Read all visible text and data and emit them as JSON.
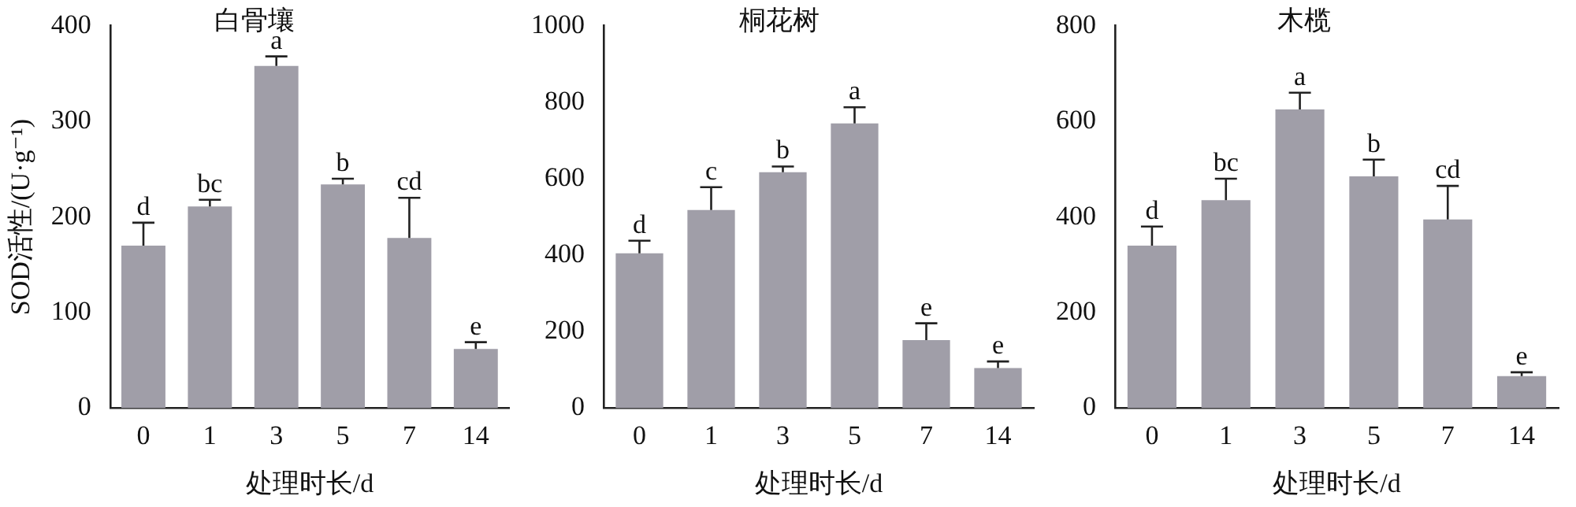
{
  "chart_data": [
    {
      "type": "bar",
      "title": "白骨壤",
      "xlabel": "处理时长/d",
      "ylabel": "SOD活性/(U·g⁻¹)",
      "categories": [
        "0",
        "1",
        "3",
        "5",
        "7",
        "14"
      ],
      "values": [
        170,
        211,
        358,
        234,
        178,
        62
      ],
      "errors": [
        24,
        7,
        10,
        6,
        42,
        7
      ],
      "value_labels": [
        "d",
        "bc",
        "a",
        "b",
        "cd",
        "e"
      ],
      "color": "#a09ea8",
      "ylim": [
        0,
        400
      ],
      "yticks": [
        0,
        100,
        200,
        300,
        400
      ],
      "grid": false,
      "legend": false
    },
    {
      "type": "bar",
      "title": "桐花树",
      "xlabel": "处理时长/d",
      "categories": [
        "0",
        "1",
        "3",
        "5",
        "7",
        "14"
      ],
      "values": [
        405,
        518,
        617,
        745,
        178,
        105
      ],
      "errors": [
        33,
        60,
        15,
        42,
        44,
        17
      ],
      "value_labels": [
        "d",
        "c",
        "b",
        "a",
        "e",
        "e"
      ],
      "color": "#a09ea8",
      "ylim": [
        0,
        1000
      ],
      "yticks": [
        0,
        200,
        400,
        600,
        800,
        1000
      ],
      "grid": false,
      "legend": false
    },
    {
      "type": "bar",
      "title": "木榄",
      "xlabel": "处理时长/d",
      "categories": [
        "0",
        "1",
        "3",
        "5",
        "7",
        "14"
      ],
      "values": [
        340,
        435,
        625,
        485,
        395,
        67
      ],
      "errors": [
        40,
        45,
        35,
        35,
        70,
        8
      ],
      "value_labels": [
        "d",
        "bc",
        "a",
        "b",
        "cd",
        "e"
      ],
      "color": "#a09ea8",
      "ylim": [
        0,
        800
      ],
      "yticks": [
        0,
        200,
        400,
        600,
        800
      ],
      "grid": false,
      "legend": false
    }
  ]
}
